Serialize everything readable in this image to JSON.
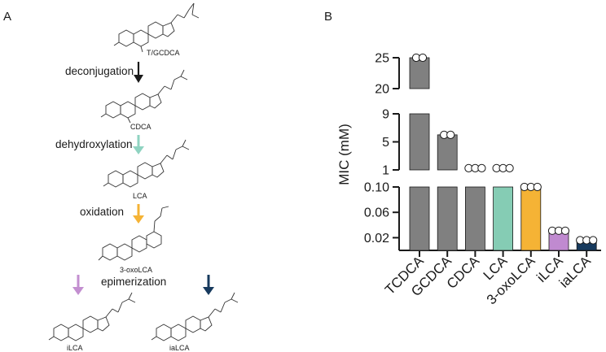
{
  "panel_a": {
    "letter": "A",
    "molecules": [
      {
        "label": "T/GCDCA"
      },
      {
        "label": "CDCA"
      },
      {
        "label": "LCA"
      },
      {
        "label": "3-oxoLCA"
      },
      {
        "label": "iLCA"
      },
      {
        "label": "iaLCA"
      }
    ],
    "steps": [
      {
        "label": "deconjugation",
        "color": "#1a1a1a"
      },
      {
        "label": "dehydroxylation",
        "color": "#8fd3c1"
      },
      {
        "label": "oxidation",
        "color": "#f5b335"
      },
      {
        "label": "epimerization",
        "color_left": "#c38fd0",
        "color_right": "#173a5e"
      }
    ]
  },
  "panel_b": {
    "letter": "B"
  },
  "chart_data": {
    "type": "bar",
    "ylabel": "MIC (mM)",
    "y_axis_segments": [
      {
        "range": [
          20,
          25
        ],
        "ticks": [
          "20",
          "25"
        ]
      },
      {
        "range": [
          1,
          9
        ],
        "ticks": [
          "1",
          "5",
          "9"
        ]
      },
      {
        "range": [
          0,
          0.1
        ],
        "ticks": [
          "0.02",
          "0.06",
          "0.10"
        ]
      }
    ],
    "categories": [
      "TCDCA",
      "GCDCA",
      "CDCA",
      "LCA",
      "3-oxoLCA",
      "iLCA",
      "iaLCA"
    ],
    "values": [
      25,
      6,
      1.25,
      1.25,
      0.1,
      0.031,
      0.016
    ],
    "replicates": [
      [
        25,
        25
      ],
      [
        6,
        6
      ],
      [
        1.25,
        1.25,
        1.25
      ],
      [
        1.25,
        1.25,
        1.25
      ],
      [
        0.1,
        0.1,
        0.1
      ],
      [
        0.031,
        0.031,
        0.031
      ],
      [
        0.016,
        0.016,
        0.016
      ]
    ],
    "bar_colors": [
      "#808080",
      "#808080",
      "#808080",
      "#85ccb4",
      "#f5b335",
      "#c08ad0",
      "#173a5e"
    ]
  }
}
